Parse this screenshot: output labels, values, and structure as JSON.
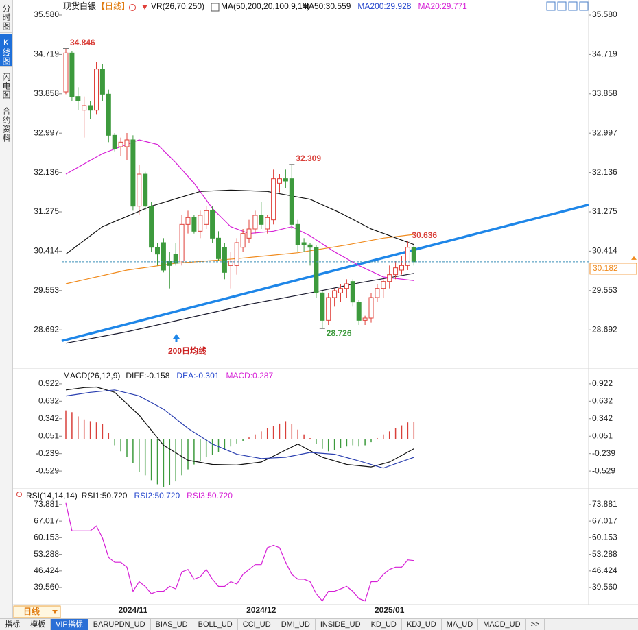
{
  "sidebar": {
    "tabs": [
      "分时图",
      "K线图",
      "闪电图",
      "合约资料"
    ],
    "selected": 1
  },
  "header": {
    "symbol": "现货白银",
    "period": "【日线】",
    "vr": "VR(26,70,250)",
    "ma": "MA(50,200,20,100,9,14)"
  },
  "period_selector": "日线",
  "bottom_tabs": {
    "items": [
      "指标",
      "模板",
      "VIP指标",
      "BARUPDN_UD",
      "BIAS_UD",
      "BOLL_UD",
      "CCI_UD",
      "DMI_UD",
      "INSIDE_UD",
      "KD_UD",
      "KDJ_UD",
      "MA_UD",
      "MACD_UD",
      ">>"
    ],
    "selected": 2
  },
  "chart_data": [
    {
      "type": "candlestick",
      "categories": [
        null,
        null,
        null,
        null,
        null,
        null,
        null,
        null,
        null,
        null,
        null,
        "2024/11",
        null,
        null,
        null,
        null,
        null,
        null,
        null,
        null,
        null,
        null,
        null,
        null,
        null,
        null,
        null,
        null,
        null,
        null,
        null,
        null,
        "2024/12",
        null,
        null,
        null,
        null,
        null,
        null,
        null,
        null,
        null,
        null,
        null,
        null,
        null,
        null,
        null,
        null,
        null,
        null,
        null,
        null,
        "2025/01",
        null,
        null,
        null,
        null
      ],
      "open": [
        33.9,
        34.75,
        33.8,
        33.5,
        33.6,
        33.5,
        34.4,
        33.85,
        32.95,
        32.7,
        32.7,
        32.85,
        31.4,
        32.1,
        31.4,
        30.5,
        30.6,
        30.2,
        30.35,
        30.2,
        31.0,
        31.15,
        30.85,
        31.0,
        31.3,
        30.7,
        30.5,
        30.1,
        30.1,
        30.5,
        30.7,
        30.9,
        31.2,
        30.9,
        31.1,
        31.9,
        32.0,
        32.0,
        31.0,
        30.6,
        30.55,
        30.5,
        29.5,
        28.9,
        29.4,
        29.5,
        29.6,
        29.75,
        29.3,
        28.9,
        28.95,
        29.4,
        29.6,
        29.75,
        29.9,
        30.0,
        30.1,
        30.5
      ],
      "high": [
        34.846,
        34.8,
        34.0,
        33.8,
        33.7,
        34.55,
        34.5,
        33.95,
        33.0,
        32.9,
        33.0,
        32.95,
        32.3,
        32.15,
        31.5,
        30.6,
        30.7,
        30.4,
        30.6,
        31.2,
        31.3,
        31.2,
        31.3,
        31.4,
        31.4,
        30.85,
        30.6,
        30.4,
        30.7,
        30.9,
        31.1,
        31.3,
        31.5,
        31.2,
        32.2,
        32.1,
        32.2,
        32.309,
        31.1,
        30.7,
        30.6,
        30.55,
        29.55,
        29.5,
        29.6,
        29.7,
        29.8,
        29.8,
        29.35,
        29.0,
        29.5,
        29.7,
        29.8,
        30.1,
        30.2,
        30.3,
        30.636,
        30.55
      ],
      "low": [
        33.85,
        33.7,
        33.5,
        32.9,
        33.3,
        33.4,
        33.7,
        32.8,
        32.6,
        32.5,
        32.4,
        31.3,
        31.2,
        31.3,
        30.4,
        30.1,
        29.95,
        29.6,
        30.1,
        30.1,
        30.8,
        30.8,
        30.7,
        30.9,
        30.6,
        30.2,
        29.8,
        29.6,
        29.9,
        30.4,
        30.6,
        30.8,
        30.9,
        30.8,
        31.0,
        31.7,
        31.8,
        30.9,
        30.4,
        30.4,
        30.1,
        29.4,
        28.726,
        28.8,
        29.2,
        29.3,
        29.4,
        29.2,
        28.8,
        28.8,
        28.85,
        29.3,
        29.4,
        29.6,
        29.8,
        29.9,
        30.0,
        30.1
      ],
      "close": [
        34.75,
        33.8,
        33.7,
        33.6,
        33.5,
        34.4,
        33.85,
        32.95,
        32.65,
        32.8,
        32.85,
        31.4,
        32.1,
        31.4,
        30.5,
        30.35,
        30.0,
        30.1,
        30.15,
        31.0,
        31.15,
        30.85,
        31.2,
        31.3,
        30.7,
        30.25,
        29.95,
        30.2,
        30.6,
        30.8,
        30.9,
        31.2,
        31.0,
        31.15,
        32.0,
        32.0,
        31.95,
        31.0,
        30.55,
        30.55,
        30.5,
        29.5,
        28.9,
        29.4,
        29.55,
        29.6,
        29.7,
        29.3,
        28.9,
        28.95,
        29.4,
        29.6,
        29.75,
        29.9,
        30.05,
        30.1,
        30.5,
        30.182
      ],
      "up_color": "#e0403a",
      "down_color": "#3d9a3d",
      "ylim": [
        27.84,
        35.835
      ],
      "yticks": [
        {
          "value": 35.58,
          "label": "35.580"
        },
        34.719,
        33.858,
        32.997,
        32.136,
        31.275,
        30.414,
        29.553,
        28.692
      ],
      "series": [
        {
          "legend": "MA50:30.559",
          "legend_color": "#111111",
          "color": "#111111",
          "x": [
            0,
            6,
            14,
            22,
            27,
            33,
            40,
            45,
            50,
            57
          ],
          "values": [
            30.35,
            30.95,
            31.4,
            31.72,
            31.75,
            31.72,
            31.55,
            31.25,
            30.9,
            30.559
          ]
        },
        {
          "legend": "MA200:29.928",
          "legend_color": "#2244cc",
          "color": "#1a1a2e",
          "x": [
            0,
            10,
            20,
            30,
            40,
            48,
            57
          ],
          "values": [
            28.4,
            28.65,
            28.95,
            29.25,
            29.5,
            29.72,
            29.928
          ]
        },
        {
          "legend": "MA20:29.771",
          "legend_color": "#d61fd6",
          "color": "#d61fd6",
          "x": [
            0,
            6,
            12,
            15,
            18,
            21,
            24,
            27,
            30,
            34,
            37,
            40,
            44,
            48,
            52,
            57
          ],
          "values": [
            32.1,
            32.55,
            32.85,
            32.75,
            32.35,
            31.9,
            31.35,
            30.95,
            30.8,
            30.85,
            30.95,
            30.75,
            30.4,
            30.1,
            29.85,
            29.771
          ]
        },
        {
          "color": "#f08a1c",
          "x": [
            0,
            10,
            18,
            28,
            38,
            46,
            52,
            57
          ],
          "values": [
            29.7,
            30.0,
            30.15,
            30.25,
            30.38,
            30.55,
            30.7,
            30.78
          ]
        }
      ],
      "trend_line": {
        "values": [
          28.45,
          31.43
        ],
        "color": "#1e86e8"
      },
      "last_price": {
        "value": 30.182,
        "color": "#f08a1c"
      },
      "annotations": [
        {
          "index": 0,
          "value": 34.846,
          "color": "#d9403a"
        },
        {
          "index": 37,
          "value": 32.309,
          "color": "#d9403a"
        },
        {
          "index": 56,
          "value": 30.636,
          "color": "#d9403a"
        },
        {
          "index": 42,
          "value": 28.726,
          "color": "#3d9a3d"
        }
      ],
      "note": "200日均线"
    },
    {
      "type": "macd",
      "title": "MACD(26,12,9)",
      "ylim": [
        -0.813,
        1.149
      ],
      "yticks": [
        0.922,
        0.632,
        0.342,
        0.051,
        -0.239,
        -0.529
      ],
      "histogram": {
        "legend": "MACD:0.287",
        "legend_color": "#d61fd6",
        "up_color": "#d9403a",
        "down_color": "#3d9a3d",
        "values": [
          0.48,
          0.45,
          0.38,
          0.33,
          0.3,
          0.28,
          0.25,
          0.1,
          -0.1,
          -0.2,
          -0.3,
          -0.4,
          -0.55,
          -0.6,
          -0.68,
          -0.75,
          -0.79,
          -0.76,
          -0.7,
          -0.6,
          -0.5,
          -0.42,
          -0.36,
          -0.3,
          -0.26,
          -0.22,
          -0.18,
          -0.12,
          -0.07,
          -0.03,
          0.03,
          0.08,
          0.13,
          0.18,
          0.22,
          0.26,
          0.3,
          0.25,
          0.16,
          0.08,
          0.02,
          -0.08,
          -0.16,
          -0.2,
          -0.18,
          -0.15,
          -0.12,
          -0.1,
          -0.12,
          -0.1,
          -0.05,
          0.02,
          0.08,
          0.13,
          0.18,
          0.23,
          0.28,
          0.287
        ]
      },
      "series": [
        {
          "legend": "DIFF:-0.158",
          "legend_color": "#111111",
          "color": "#111111",
          "x": [
            0,
            3,
            5,
            8,
            12,
            16,
            20,
            24,
            28,
            32,
            36,
            38,
            42,
            46,
            50,
            53,
            57
          ],
          "values": [
            0.82,
            0.86,
            0.87,
            0.78,
            0.4,
            -0.1,
            -0.35,
            -0.42,
            -0.43,
            -0.38,
            -0.18,
            -0.08,
            -0.3,
            -0.42,
            -0.46,
            -0.38,
            -0.158
          ]
        },
        {
          "legend": "DEA:-0.301",
          "legend_color": "#2244cc",
          "color": "#2a3fb0",
          "x": [
            0,
            4,
            8,
            12,
            16,
            20,
            24,
            28,
            32,
            36,
            40,
            44,
            48,
            52,
            57
          ],
          "values": [
            0.72,
            0.78,
            0.82,
            0.72,
            0.5,
            0.18,
            -0.08,
            -0.25,
            -0.32,
            -0.3,
            -0.22,
            -0.25,
            -0.36,
            -0.48,
            -0.301
          ]
        }
      ]
    },
    {
      "type": "line",
      "title": "RSI(14,14,14)",
      "ylim": [
        32.5,
        79.8
      ],
      "yticks": [
        73.881,
        67.017,
        60.153,
        53.288,
        46.424,
        {
          "value": 39.56,
          "label": "39.560"
        }
      ],
      "legend": [
        {
          "text": "RSI1:50.720",
          "color": "#111111"
        },
        {
          "text": "RSI2:50.720",
          "color": "#2244cc"
        },
        {
          "text": "RSI3:50.720",
          "color": "#d61fd6"
        }
      ],
      "series": [
        {
          "color": "#d61fd6",
          "values": [
            74.5,
            63,
            63,
            63,
            63,
            65,
            60,
            52,
            50,
            50,
            48,
            38,
            42,
            40,
            37,
            38,
            38,
            40,
            39,
            46,
            47,
            43,
            44,
            47,
            43,
            40,
            40,
            42,
            41,
            45,
            47,
            49,
            49,
            56,
            57,
            56,
            50,
            45,
            43,
            43,
            42,
            37,
            34,
            38,
            38,
            39,
            40,
            38,
            35,
            34,
            42,
            42,
            45,
            47,
            48,
            48,
            51,
            50.72
          ]
        }
      ]
    }
  ]
}
